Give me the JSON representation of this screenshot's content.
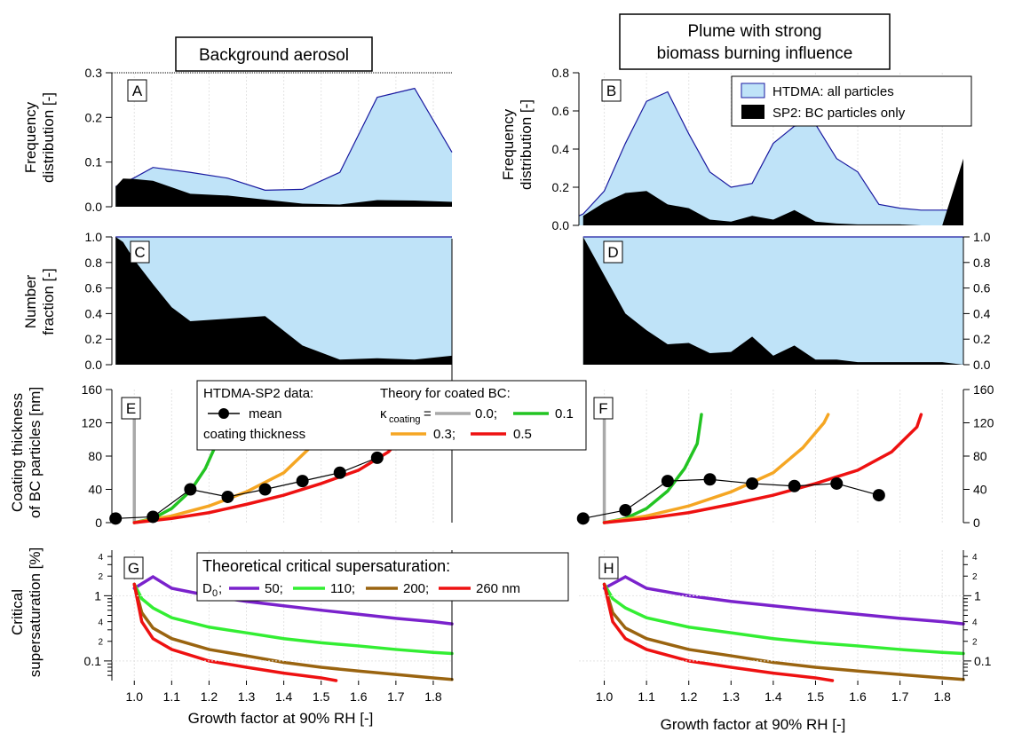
{
  "titles": {
    "left": "Background aerosol",
    "right_line1": "Plume with strong",
    "right_line2": "biomass burning influence"
  },
  "ylabels": {
    "freq_1": "Frequency",
    "freq_2": "distribution [-]",
    "num_1": "Number",
    "num_2": "fraction [-]",
    "coat_1": "Coating thickness",
    "coat_2": "of BC particles [nm]",
    "crit_1": "Critical",
    "crit_2": "supersaturation [%]"
  },
  "xlabel": "Growth factor at 90% RH [-]",
  "panel_labels": [
    "A",
    "B",
    "C",
    "D",
    "E",
    "F",
    "G",
    "H"
  ],
  "legend_AB": {
    "htdma": "HTDMA: all particles",
    "sp2": "SP2: BC particles only"
  },
  "legend_EF": {
    "data_title": "HTDMA-SP2 data:",
    "mean": "mean",
    "coating": "coating thickness",
    "theory_title": "Theory for coated BC:",
    "kappa_symbol": "κ",
    "kappa_sub": "coating",
    "eq": "=",
    "k00": "0.0;",
    "k01": "0.1",
    "k03": "0.3;",
    "k05": "0.5"
  },
  "legend_GH": {
    "title": "Theoretical critical supersaturation:",
    "d0": "D",
    "d0_sub": "0",
    "semi": ";",
    "d50": "50;",
    "d110": "110;",
    "d200": "200;",
    "d260": "260 nm"
  },
  "colors": {
    "htdma_fill": "#bfe3f8",
    "htdma_line": "#1a1aa0",
    "sp2_fill": "#000000",
    "kappa_0_0": "#a9a9a9",
    "kappa_0_1": "#22c422",
    "kappa_0_3": "#f5a623",
    "kappa_0_5": "#ee1111",
    "d0_50": "#7a22cc",
    "d0_110": "#33ee33",
    "d0_200": "#9a6410",
    "d0_260": "#ee1111"
  },
  "chart_data": [
    {
      "type": "area",
      "panel": "A",
      "xlim": [
        0.94,
        1.85
      ],
      "ylim": [
        0,
        0.3
      ],
      "yticks": [
        "0.0",
        "0.1",
        "0.2",
        "0.3"
      ],
      "series": [
        {
          "name": "HTDMA: all particles",
          "x": [
            0.95,
            1.0,
            1.05,
            1.15,
            1.25,
            1.35,
            1.45,
            1.55,
            1.65,
            1.75,
            1.85
          ],
          "values": [
            0.045,
            0.065,
            0.088,
            0.077,
            0.064,
            0.037,
            0.039,
            0.077,
            0.245,
            0.265,
            0.122
          ]
        },
        {
          "name": "SP2: BC particles only",
          "x": [
            0.95,
            0.97,
            1.0,
            1.05,
            1.15,
            1.25,
            1.35,
            1.45,
            1.55,
            1.65,
            1.75,
            1.85
          ],
          "values": [
            0.045,
            0.063,
            0.062,
            0.058,
            0.029,
            0.025,
            0.016,
            0.007,
            0.005,
            0.015,
            0.014,
            0.011
          ]
        }
      ]
    },
    {
      "type": "area",
      "panel": "B",
      "xlim": [
        0.94,
        1.85
      ],
      "ylim": [
        0,
        0.8
      ],
      "yticks": [
        "0.0",
        "0.2",
        "0.4",
        "0.6",
        "0.8"
      ],
      "series": [
        {
          "name": "HTDMA: all particles",
          "x": [
            0.94,
            0.95,
            1.0,
            1.05,
            1.1,
            1.15,
            1.2,
            1.25,
            1.3,
            1.35,
            1.4,
            1.45,
            1.5,
            1.55,
            1.6,
            1.65,
            1.7,
            1.75,
            1.8,
            1.85
          ],
          "values": [
            0.05,
            0.06,
            0.18,
            0.43,
            0.65,
            0.7,
            0.48,
            0.28,
            0.2,
            0.22,
            0.43,
            0.52,
            0.53,
            0.35,
            0.28,
            0.11,
            0.09,
            0.08,
            0.08,
            0.08
          ]
        },
        {
          "name": "SP2: BC particles only",
          "x": [
            0.95,
            1.0,
            1.05,
            1.1,
            1.15,
            1.2,
            1.25,
            1.3,
            1.35,
            1.4,
            1.45,
            1.5,
            1.55,
            1.6,
            1.65,
            1.7,
            1.75,
            1.8,
            1.85
          ],
          "values": [
            0.05,
            0.12,
            0.17,
            0.18,
            0.11,
            0.09,
            0.03,
            0.02,
            0.05,
            0.03,
            0.08,
            0.02,
            0.01,
            0.005,
            0.005,
            0.005,
            0.0,
            0.0,
            0.35
          ]
        }
      ]
    },
    {
      "type": "area",
      "panel": "C",
      "xlim": [
        0.94,
        1.85
      ],
      "ylim": [
        0,
        1.0
      ],
      "yticks": [
        "0.0",
        "0.2",
        "0.4",
        "0.6",
        "0.8",
        "1.0"
      ],
      "series": [
        {
          "name": "HTDMA: all particles",
          "x": [
            0.95,
            1.85
          ],
          "values": [
            1.0,
            1.0
          ]
        },
        {
          "name": "SP2: BC particles only",
          "x": [
            0.95,
            0.97,
            1.0,
            1.05,
            1.1,
            1.15,
            1.25,
            1.35,
            1.45,
            1.55,
            1.65,
            1.75,
            1.85
          ],
          "values": [
            1.0,
            0.96,
            0.82,
            0.63,
            0.45,
            0.34,
            0.36,
            0.38,
            0.15,
            0.04,
            0.05,
            0.04,
            0.07
          ]
        }
      ]
    },
    {
      "type": "area",
      "panel": "D",
      "xlim": [
        0.94,
        1.85
      ],
      "ylim": [
        0,
        1.0
      ],
      "yticks": [
        "0.0",
        "0.2",
        "0.4",
        "0.6",
        "0.8",
        "1.0"
      ],
      "series": [
        {
          "name": "HTDMA: all particles",
          "x": [
            0.95,
            1.85
          ],
          "values": [
            1.0,
            1.0
          ]
        },
        {
          "name": "SP2: BC particles only",
          "x": [
            0.95,
            1.0,
            1.05,
            1.1,
            1.15,
            1.2,
            1.25,
            1.3,
            1.35,
            1.4,
            1.45,
            1.5,
            1.55,
            1.6,
            1.65,
            1.7,
            1.75,
            1.8,
            1.85
          ],
          "values": [
            1.0,
            0.7,
            0.4,
            0.27,
            0.16,
            0.17,
            0.09,
            0.1,
            0.22,
            0.07,
            0.15,
            0.04,
            0.04,
            0.02,
            0.02,
            0.02,
            0.02,
            0.02,
            0.0
          ]
        }
      ]
    },
    {
      "type": "line",
      "panel": "E",
      "xlim": [
        0.94,
        1.85
      ],
      "ylim": [
        0,
        160
      ],
      "yticks": [
        "0",
        "40",
        "80",
        "120",
        "160"
      ],
      "mean_coating": {
        "x": [
          0.95,
          1.05,
          1.15,
          1.25,
          1.35,
          1.45,
          1.55,
          1.65
        ],
        "y": [
          5,
          7,
          40,
          31,
          40,
          50,
          60,
          78
        ]
      },
      "theory": [
        {
          "kappa": 0.0,
          "x": [
            1.0,
            1.0
          ],
          "y": [
            0,
            130
          ]
        },
        {
          "kappa": 0.1,
          "x": [
            1.0,
            1.05,
            1.1,
            1.15,
            1.19,
            1.22,
            1.23
          ],
          "y": [
            0,
            5,
            17,
            38,
            65,
            95,
            130
          ]
        },
        {
          "kappa": 0.3,
          "x": [
            1.0,
            1.1,
            1.2,
            1.3,
            1.4,
            1.47,
            1.52,
            1.53
          ],
          "y": [
            0,
            8,
            20,
            37,
            60,
            90,
            120,
            130
          ]
        },
        {
          "kappa": 0.5,
          "x": [
            1.0,
            1.1,
            1.2,
            1.3,
            1.4,
            1.5,
            1.6,
            1.68,
            1.74,
            1.75
          ],
          "y": [
            0,
            5,
            12,
            22,
            33,
            47,
            63,
            85,
            115,
            130
          ]
        }
      ]
    },
    {
      "type": "line",
      "panel": "F",
      "xlim": [
        0.94,
        1.85
      ],
      "ylim": [
        0,
        160
      ],
      "yticks": [
        "0",
        "40",
        "80",
        "120",
        "160"
      ],
      "mean_coating": {
        "x": [
          0.95,
          1.05,
          1.15,
          1.25,
          1.35,
          1.45,
          1.55,
          1.65
        ],
        "y": [
          5,
          15,
          50,
          52,
          47,
          44,
          47,
          33
        ]
      },
      "theory": [
        {
          "kappa": 0.0,
          "x": [
            1.0,
            1.0
          ],
          "y": [
            0,
            130
          ]
        },
        {
          "kappa": 0.1,
          "x": [
            1.0,
            1.05,
            1.1,
            1.15,
            1.19,
            1.22,
            1.23
          ],
          "y": [
            0,
            5,
            17,
            38,
            65,
            95,
            130
          ]
        },
        {
          "kappa": 0.3,
          "x": [
            1.0,
            1.1,
            1.2,
            1.3,
            1.4,
            1.47,
            1.52,
            1.53
          ],
          "y": [
            0,
            8,
            20,
            37,
            60,
            90,
            120,
            130
          ]
        },
        {
          "kappa": 0.5,
          "x": [
            1.0,
            1.1,
            1.2,
            1.3,
            1.4,
            1.5,
            1.6,
            1.68,
            1.74,
            1.75
          ],
          "y": [
            0,
            5,
            12,
            22,
            33,
            47,
            63,
            85,
            115,
            130
          ]
        }
      ]
    },
    {
      "type": "line",
      "panel": "G",
      "yscale": "log",
      "xlim": [
        0.94,
        1.85
      ],
      "ylim": [
        0.05,
        5
      ],
      "xticks": [
        "1.0",
        "1.1",
        "1.2",
        "1.3",
        "1.4",
        "1.5",
        "1.6",
        "1.7",
        "1.8"
      ],
      "series": [
        {
          "name": "50",
          "x": [
            1.0,
            1.05,
            1.1,
            1.2,
            1.3,
            1.4,
            1.5,
            1.6,
            1.7,
            1.8,
            1.85
          ],
          "values": [
            1.3,
            1.95,
            1.3,
            1.0,
            0.82,
            0.7,
            0.6,
            0.52,
            0.45,
            0.4,
            0.37
          ]
        },
        {
          "name": "110",
          "x": [
            1.0,
            1.02,
            1.05,
            1.1,
            1.2,
            1.3,
            1.4,
            1.5,
            1.6,
            1.7,
            1.8,
            1.85
          ],
          "values": [
            1.5,
            0.9,
            0.65,
            0.46,
            0.33,
            0.27,
            0.22,
            0.19,
            0.17,
            0.15,
            0.135,
            0.13
          ]
        },
        {
          "name": "200",
          "x": [
            1.0,
            1.02,
            1.05,
            1.1,
            1.2,
            1.3,
            1.4,
            1.5,
            1.6,
            1.7,
            1.8,
            1.85
          ],
          "values": [
            1.5,
            0.55,
            0.32,
            0.22,
            0.15,
            0.12,
            0.095,
            0.08,
            0.07,
            0.062,
            0.055,
            0.052
          ]
        },
        {
          "name": "260",
          "x": [
            1.0,
            1.02,
            1.05,
            1.1,
            1.2,
            1.3,
            1.4,
            1.5,
            1.54
          ],
          "values": [
            1.5,
            0.4,
            0.22,
            0.15,
            0.1,
            0.08,
            0.065,
            0.055,
            0.05
          ]
        }
      ]
    },
    {
      "type": "line",
      "panel": "H",
      "yscale": "log",
      "xlim": [
        0.94,
        1.85
      ],
      "ylim": [
        0.05,
        5
      ],
      "xticks": [
        "1.0",
        "1.1",
        "1.2",
        "1.3",
        "1.4",
        "1.5",
        "1.6",
        "1.7",
        "1.8"
      ],
      "series": [
        {
          "name": "50",
          "x": [
            1.0,
            1.05,
            1.1,
            1.2,
            1.3,
            1.4,
            1.5,
            1.6,
            1.7,
            1.8,
            1.85
          ],
          "values": [
            1.3,
            1.95,
            1.3,
            1.0,
            0.82,
            0.7,
            0.6,
            0.52,
            0.45,
            0.4,
            0.37
          ]
        },
        {
          "name": "110",
          "x": [
            1.0,
            1.02,
            1.05,
            1.1,
            1.2,
            1.3,
            1.4,
            1.5,
            1.6,
            1.7,
            1.8,
            1.85
          ],
          "values": [
            1.5,
            0.9,
            0.65,
            0.46,
            0.33,
            0.27,
            0.22,
            0.19,
            0.17,
            0.15,
            0.135,
            0.13
          ]
        },
        {
          "name": "200",
          "x": [
            1.0,
            1.02,
            1.05,
            1.1,
            1.2,
            1.3,
            1.4,
            1.5,
            1.6,
            1.7,
            1.8,
            1.85
          ],
          "values": [
            1.5,
            0.55,
            0.32,
            0.22,
            0.15,
            0.12,
            0.095,
            0.08,
            0.07,
            0.062,
            0.055,
            0.052
          ]
        },
        {
          "name": "260",
          "x": [
            1.0,
            1.02,
            1.05,
            1.1,
            1.2,
            1.3,
            1.4,
            1.5,
            1.54
          ],
          "values": [
            1.5,
            0.4,
            0.22,
            0.15,
            0.1,
            0.08,
            0.065,
            0.055,
            0.05
          ]
        }
      ]
    }
  ]
}
